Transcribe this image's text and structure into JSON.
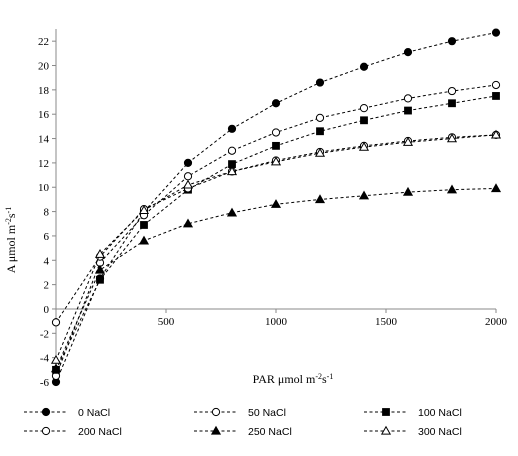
{
  "chart_data": {
    "type": "line",
    "xlabel_main": "PAR μmol m",
    "xlabel_sup1": "-2",
    "xlabel_mid": "s",
    "xlabel_sup2": "-1",
    "ylabel_main": "A μmol m",
    "ylabel_sup1": "-2",
    "ylabel_mid": "s",
    "ylabel_sup2": "-1",
    "xlim": [
      0,
      2000
    ],
    "ylim": [
      -6,
      23
    ],
    "x_ticks": [
      0,
      500,
      1000,
      1500,
      2000
    ],
    "y_ticks": [
      -6,
      -4,
      -2,
      0,
      2,
      4,
      6,
      8,
      10,
      12,
      14,
      16,
      18,
      20,
      22
    ],
    "x_tick_labels": [
      "0",
      "500",
      "1000",
      "1500",
      "2000"
    ],
    "y_tick_labels": [
      "-6",
      "-4",
      "-2",
      "0",
      "2",
      "4",
      "6",
      "8",
      "10",
      "12",
      "14",
      "16",
      "18",
      "20",
      "22"
    ],
    "grid": false,
    "legend_position": "bottom",
    "x": [
      0,
      200,
      400,
      600,
      800,
      1000,
      1200,
      1400,
      1600,
      1800,
      2000
    ],
    "series": [
      {
        "name": "0 NaCl",
        "marker": "filled-circle",
        "color": "#000000",
        "values": [
          -6.0,
          2.5,
          8.0,
          12.0,
          14.8,
          16.9,
          18.6,
          19.9,
          21.1,
          22.0,
          22.7
        ]
      },
      {
        "name": "50 NaCl",
        "marker": "open-circle",
        "color": "#000000",
        "values": [
          -5.5,
          3.8,
          7.7,
          10.9,
          13.0,
          14.5,
          15.7,
          16.5,
          17.3,
          17.9,
          18.4
        ]
      },
      {
        "name": "100 NaCl",
        "marker": "filled-square",
        "color": "#000000",
        "values": [
          -5.0,
          2.4,
          6.9,
          9.8,
          11.9,
          13.4,
          14.6,
          15.5,
          16.3,
          16.9,
          17.5
        ]
      },
      {
        "name": "200 NaCl",
        "marker": "open-circle",
        "color": "#000000",
        "values": [
          -1.1,
          4.3,
          8.2,
          9.9,
          11.3,
          12.2,
          12.9,
          13.4,
          13.8,
          14.1,
          14.3
        ]
      },
      {
        "name": "250 NaCl",
        "marker": "filled-triangle",
        "color": "#000000",
        "values": [
          -4.9,
          3.2,
          5.6,
          7.0,
          7.9,
          8.6,
          9.0,
          9.3,
          9.6,
          9.8,
          9.9
        ]
      },
      {
        "name": "300 NaCl",
        "marker": "open-triangle",
        "color": "#000000",
        "values": [
          -4.2,
          4.5,
          8.1,
          10.2,
          11.3,
          12.1,
          12.8,
          13.3,
          13.7,
          14.0,
          14.3
        ]
      }
    ]
  }
}
